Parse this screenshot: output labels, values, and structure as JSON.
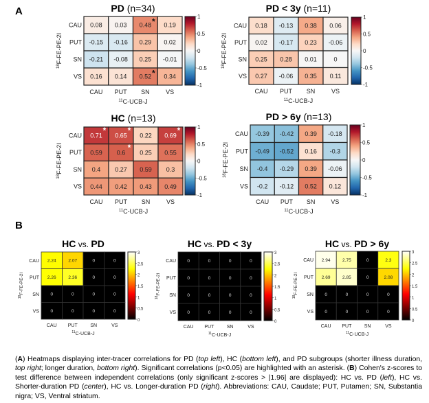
{
  "panels": {
    "A": "A",
    "B": "B"
  },
  "chart_data": [
    {
      "type": "heatmap",
      "panel": "A",
      "id": "pd",
      "title_bold": "PD",
      "title_rest": " (n=34)",
      "xlabel_sup": "11",
      "xlabel": "C-UCB-J",
      "ylabel_sup": "18",
      "ylabel": "F-FE-PE-2I",
      "x_categories": [
        "CAU",
        "PUT",
        "SN",
        "VS"
      ],
      "y_categories": [
        "CAU",
        "PUT",
        "SN",
        "VS"
      ],
      "values": [
        [
          0.08,
          0.03,
          0.48,
          0.19
        ],
        [
          -0.15,
          -0.16,
          0.29,
          0.02
        ],
        [
          -0.21,
          -0.08,
          0.25,
          -0.01
        ],
        [
          0.16,
          0.14,
          0.52,
          0.34
        ]
      ],
      "significant": [
        [
          false,
          false,
          true,
          false
        ],
        [
          false,
          false,
          false,
          false
        ],
        [
          false,
          false,
          false,
          false
        ],
        [
          false,
          false,
          true,
          false
        ]
      ],
      "colormap": "diverging-blue-white-red",
      "clim": [
        -1,
        1
      ],
      "colorbar_ticks": [
        "1",
        "0.5",
        "0",
        "-0.5",
        "-1"
      ]
    },
    {
      "type": "heatmap",
      "panel": "A",
      "id": "pd3",
      "title_bold": "PD < 3y",
      "title_rest": " (n=11)",
      "xlabel_sup": "11",
      "xlabel": "C-UCB-J",
      "ylabel_sup": "18",
      "ylabel": "F-FE-PE-2I",
      "x_categories": [
        "CAU",
        "PUT",
        "SN",
        "VS"
      ],
      "y_categories": [
        "CAU",
        "PUT",
        "SN",
        "VS"
      ],
      "values": [
        [
          0.18,
          -0.13,
          0.38,
          0.06
        ],
        [
          0.02,
          -0.17,
          0.23,
          -0.06
        ],
        [
          0.25,
          0.28,
          0.01,
          0
        ],
        [
          0.27,
          -0.06,
          0.35,
          0.11
        ]
      ],
      "significant": [
        [
          false,
          false,
          false,
          false
        ],
        [
          false,
          false,
          false,
          false
        ],
        [
          false,
          false,
          false,
          false
        ],
        [
          false,
          false,
          false,
          false
        ]
      ],
      "colormap": "diverging-blue-white-red",
      "clim": [
        -1,
        1
      ],
      "colorbar_ticks": [
        "1",
        "0.5",
        "0",
        "-0.5",
        "-1"
      ]
    },
    {
      "type": "heatmap",
      "panel": "A",
      "id": "hc",
      "title_bold": "HC",
      "title_rest": " (n=13)",
      "xlabel_sup": "11",
      "xlabel": "C-UCB-J",
      "ylabel_sup": "18",
      "ylabel": "F-FE-PE-2I",
      "x_categories": [
        "CAU",
        "PUT",
        "SN",
        "VS"
      ],
      "y_categories": [
        "CAU",
        "PUT",
        "SN",
        "VS"
      ],
      "values": [
        [
          0.71,
          0.65,
          0.22,
          0.69
        ],
        [
          0.59,
          0.6,
          0.25,
          0.55
        ],
        [
          0.4,
          0.27,
          0.59,
          0.3
        ],
        [
          0.44,
          0.42,
          0.43,
          0.49
        ]
      ],
      "significant": [
        [
          true,
          true,
          false,
          true
        ],
        [
          false,
          true,
          false,
          false
        ],
        [
          false,
          false,
          false,
          false
        ],
        [
          false,
          false,
          false,
          false
        ]
      ],
      "colormap": "diverging-blue-white-red",
      "clim": [
        -1,
        1
      ],
      "colorbar_ticks": [
        "1",
        "0.5",
        "0",
        "-0.5",
        "-1"
      ]
    },
    {
      "type": "heatmap",
      "panel": "A",
      "id": "pd6",
      "title_bold": "PD > 6y",
      "title_rest": " (n=13)",
      "xlabel_sup": "11",
      "xlabel": "C-UCB-J",
      "ylabel_sup": "18",
      "ylabel": "F-FE-PE-2I",
      "x_categories": [
        "CAU",
        "PUT",
        "SN",
        "VS"
      ],
      "y_categories": [
        "CAU",
        "PUT",
        "SN",
        "VS"
      ],
      "values": [
        [
          -0.39,
          -0.42,
          0.39,
          -0.18
        ],
        [
          -0.49,
          -0.52,
          0.16,
          -0.3
        ],
        [
          -0.4,
          -0.29,
          0.39,
          -0.06
        ],
        [
          -0.2,
          -0.12,
          0.52,
          0.12
        ]
      ],
      "significant": [
        [
          false,
          false,
          false,
          false
        ],
        [
          false,
          false,
          false,
          false
        ],
        [
          false,
          false,
          false,
          false
        ],
        [
          false,
          false,
          false,
          false
        ]
      ],
      "colormap": "diverging-blue-white-red",
      "clim": [
        -1,
        1
      ],
      "colorbar_ticks": [
        "1",
        "0.5",
        "0",
        "-0.5",
        "-1"
      ]
    },
    {
      "type": "heatmap",
      "panel": "B",
      "id": "hcpd",
      "title_bold": "HC",
      "title_mid": " vs. ",
      "title_bold2": "PD",
      "xlabel_sup": "11",
      "xlabel": "C-UCB-J",
      "ylabel_sup": "18",
      "ylabel": "F-FE-PE-2I",
      "x_categories": [
        "CAU",
        "PUT",
        "SN",
        "VS"
      ],
      "y_categories": [
        "CAU",
        "PUT",
        "SN",
        "VS"
      ],
      "values": [
        [
          2.24,
          2.07,
          0,
          0
        ],
        [
          2.26,
          2.36,
          0,
          0
        ],
        [
          0,
          0,
          0,
          0
        ],
        [
          0,
          0,
          0,
          0
        ]
      ],
      "colormap": "hot",
      "clim": [
        0,
        3
      ],
      "colorbar_ticks": [
        "3",
        "2.5",
        "2",
        "1.5",
        "1",
        "0.5",
        "0"
      ]
    },
    {
      "type": "heatmap",
      "panel": "B",
      "id": "hcpd3",
      "title_bold": "HC",
      "title_mid": " vs. ",
      "title_bold2": "PD < 3y",
      "xlabel_sup": "11",
      "xlabel": "C-UCB-J",
      "ylabel_sup": "18",
      "ylabel": "F-FE-PE-2I",
      "x_categories": [
        "CAU",
        "PUT",
        "SN",
        "VS"
      ],
      "y_categories": [
        "CAU",
        "PUT",
        "SN",
        "VS"
      ],
      "values": [
        [
          0,
          0,
          0,
          0
        ],
        [
          0,
          0,
          0,
          0
        ],
        [
          0,
          0,
          0,
          0
        ],
        [
          0,
          0,
          0,
          0
        ]
      ],
      "colormap": "hot",
      "clim": [
        0,
        3
      ],
      "colorbar_ticks": [
        "3",
        "2.5",
        "2",
        "1.5",
        "1",
        "0.5",
        "0"
      ]
    },
    {
      "type": "heatmap",
      "panel": "B",
      "id": "hcpd6",
      "title_bold": "HC",
      "title_mid": " vs. ",
      "title_bold2": "PD > 6y",
      "xlabel_sup": "11",
      "xlabel": "C-UCB-J",
      "ylabel_sup": "18",
      "ylabel": "F-FE-PE-2I",
      "x_categories": [
        "CAU",
        "PUT",
        "SN",
        "VS"
      ],
      "y_categories": [
        "CAU",
        "PUT",
        "SN",
        "VS"
      ],
      "values": [
        [
          2.94,
          2.75,
          0,
          2.3
        ],
        [
          2.69,
          2.85,
          0,
          2.08
        ],
        [
          0,
          0,
          0,
          0
        ],
        [
          0,
          0,
          0,
          0
        ]
      ],
      "colormap": "hot",
      "clim": [
        0,
        3
      ],
      "colorbar_ticks": [
        "3",
        "2.5",
        "2",
        "1.5",
        "1",
        "0.5",
        "0"
      ]
    }
  ],
  "caption": {
    "parts": [
      {
        "t": "(",
        "s": ""
      },
      {
        "t": "A",
        "s": "b"
      },
      {
        "t": ") Heatmaps displaying inter-tracer correlations for PD (",
        "s": ""
      },
      {
        "t": "top left",
        "s": "i"
      },
      {
        "t": "), HC (",
        "s": ""
      },
      {
        "t": "bottom left",
        "s": "i"
      },
      {
        "t": "), and PD subgroups (shorter illness duration, ",
        "s": ""
      },
      {
        "t": "top right",
        "s": "i"
      },
      {
        "t": "; longer duration, ",
        "s": ""
      },
      {
        "t": "bottom right",
        "s": "i"
      },
      {
        "t": "). Significant correlations (p<0.05) are highlighted with an asterisk. (",
        "s": ""
      },
      {
        "t": "B",
        "s": "b"
      },
      {
        "t": ") Cohen's z-scores to test difference between independent correlations (only significant z-scores > |1.96| are displayed): HC vs. PD (",
        "s": ""
      },
      {
        "t": "left",
        "s": "i"
      },
      {
        "t": "), HC vs. Shorter-duration PD (",
        "s": ""
      },
      {
        "t": "center",
        "s": "i"
      },
      {
        "t": "), HC vs. Longer-duration PD (",
        "s": ""
      },
      {
        "t": "right",
        "s": "i"
      },
      {
        "t": ").  Abbreviations: CAU, Caudate; PUT, Putamen; SN, Substantia nigra; VS, Ventral striatum.",
        "s": ""
      }
    ]
  }
}
